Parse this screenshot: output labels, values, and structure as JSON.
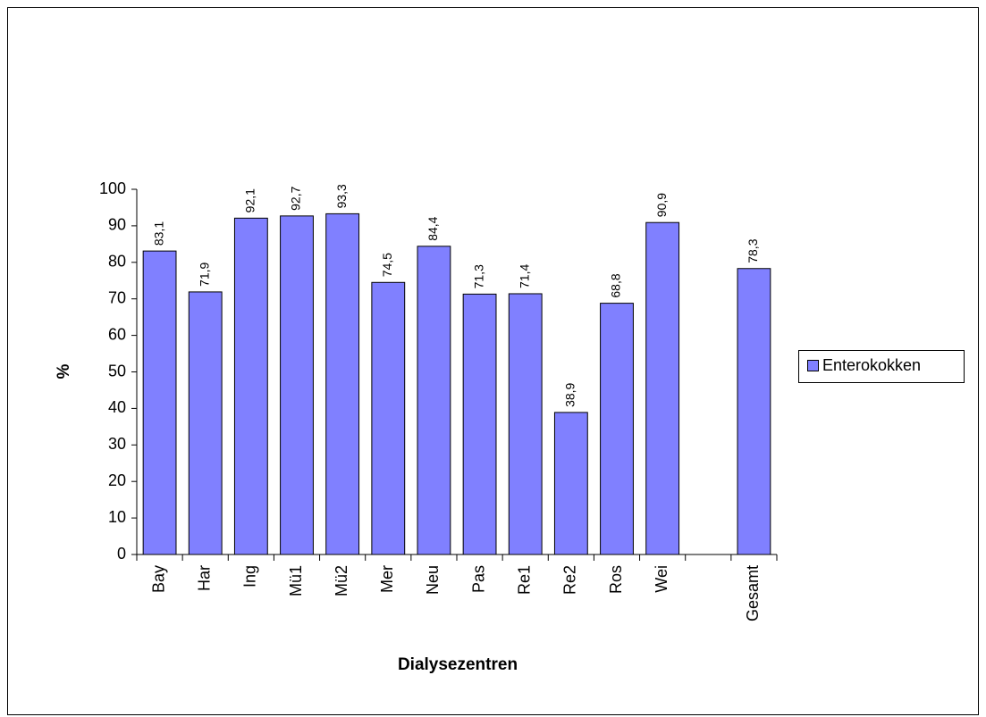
{
  "chart_data": {
    "type": "bar",
    "x_label": "Dialysezentren",
    "y_label": "%",
    "categories": [
      "Bay",
      "Har",
      "Ing",
      "Mü1",
      "Mü2",
      "Mer",
      "Neu",
      "Pas",
      "Re1",
      "Re2",
      "Ros",
      "Wei",
      null,
      "Gesamt"
    ],
    "series": [
      {
        "name": "Enterokokken",
        "color": "#8080ff",
        "values": [
          83.1,
          71.9,
          92.1,
          92.7,
          93.3,
          74.5,
          84.4,
          71.3,
          71.4,
          38.9,
          68.8,
          90.9,
          null,
          78.3
        ],
        "value_labels": [
          "83,1",
          "71,9",
          "92,1",
          "92,7",
          "93,3",
          "74,5",
          "84,4",
          "71,3",
          "71,4",
          "38,9",
          "68,8",
          "90,9",
          null,
          "78,3"
        ]
      }
    ],
    "ylim": [
      0,
      100
    ],
    "yticks": [
      0,
      10,
      20,
      30,
      40,
      50,
      60,
      70,
      80,
      90,
      100
    ],
    "grid": false,
    "legend": "right"
  }
}
